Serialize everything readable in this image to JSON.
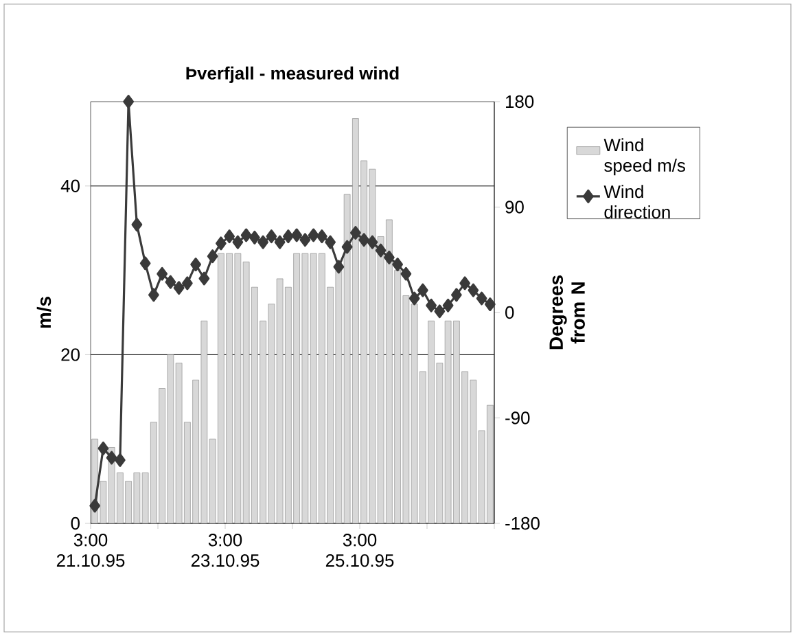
{
  "chart_data": {
    "type": "bar",
    "title": "Þverfjall - measured wind",
    "ylabel": "m/s",
    "y2label": "Degrees from N",
    "x": [
      "1995-10-21T04:30",
      "1995-10-21T07:30",
      "1995-10-21T10:30",
      "1995-10-21T13:30",
      "1995-10-21T16:30",
      "1995-10-21T19:30",
      "1995-10-21T22:30",
      "1995-10-22T01:30",
      "1995-10-22T04:30",
      "1995-10-22T07:30",
      "1995-10-22T10:30",
      "1995-10-22T13:30",
      "1995-10-22T16:30",
      "1995-10-22T19:30",
      "1995-10-22T22:30",
      "1995-10-23T01:30",
      "1995-10-23T04:30",
      "1995-10-23T07:30",
      "1995-10-23T10:30",
      "1995-10-23T13:30",
      "1995-10-23T16:30",
      "1995-10-23T19:30",
      "1995-10-23T22:30",
      "1995-10-24T01:30",
      "1995-10-24T04:30",
      "1995-10-24T07:30",
      "1995-10-24T10:30",
      "1995-10-24T13:30",
      "1995-10-24T16:30",
      "1995-10-24T19:30",
      "1995-10-24T22:30",
      "1995-10-25T01:30",
      "1995-10-25T04:30",
      "1995-10-25T07:30",
      "1995-10-25T10:30",
      "1995-10-25T13:30",
      "1995-10-25T16:30",
      "1995-10-25T19:30",
      "1995-10-25T22:30",
      "1995-10-26T01:30",
      "1995-10-26T04:30",
      "1995-10-26T07:30",
      "1995-10-26T10:30",
      "1995-10-26T13:30",
      "1995-10-26T16:30",
      "1995-10-26T19:30",
      "1995-10-26T22:30",
      "1995-10-27T01:30"
    ],
    "series": [
      {
        "name": "Wind speed m/s",
        "type": "bar",
        "color": "#d8d8d8",
        "values": [
          10,
          5,
          9,
          6,
          5,
          6,
          6,
          12,
          16,
          20,
          19,
          12,
          17,
          24,
          10,
          32,
          32,
          32,
          31,
          28,
          24,
          26,
          29,
          28,
          32,
          32,
          32,
          32,
          28,
          30,
          39,
          48,
          43,
          42,
          34,
          36,
          30,
          27,
          26,
          18,
          24,
          19,
          24,
          24,
          18,
          17,
          11,
          14
        ]
      },
      {
        "name": "Wind direction",
        "type": "line",
        "axis": "y2",
        "color": "#3a3a3a",
        "marker": "diamond",
        "values": [
          -165,
          -116,
          -124,
          -126,
          180,
          75,
          42,
          15,
          33,
          26,
          21,
          25,
          41,
          29,
          48,
          59,
          65,
          60,
          66,
          64,
          60,
          65,
          60,
          65,
          66,
          62,
          66,
          65,
          60,
          39,
          56,
          68,
          62,
          60,
          53,
          47,
          41,
          33,
          12,
          19,
          6,
          1,
          6,
          15,
          25,
          19,
          12,
          7
        ]
      }
    ],
    "xlim": [
      "1995-10-21T03:00",
      "1995-10-27T03:00"
    ],
    "xticks": [
      {
        "value": "1995-10-21T03:00",
        "label": "3:00 21.10.95"
      },
      {
        "value": "1995-10-22T03:00",
        "label": null
      },
      {
        "value": "1995-10-23T03:00",
        "label": "3:00 23.10.95"
      },
      {
        "value": "1995-10-24T03:00",
        "label": null
      },
      {
        "value": "1995-10-25T03:00",
        "label": "3:00 25.10.95"
      },
      {
        "value": "1995-10-26T03:00",
        "label": null
      },
      {
        "value": "1995-10-27T03:00",
        "label": null
      }
    ],
    "ylim": [
      0,
      50
    ],
    "yticks": [
      0,
      20,
      40
    ],
    "y2lim": [
      -180,
      180
    ],
    "y2ticks": [
      -180,
      -90,
      0,
      90,
      180
    ],
    "grid": "y",
    "legend": "right"
  }
}
